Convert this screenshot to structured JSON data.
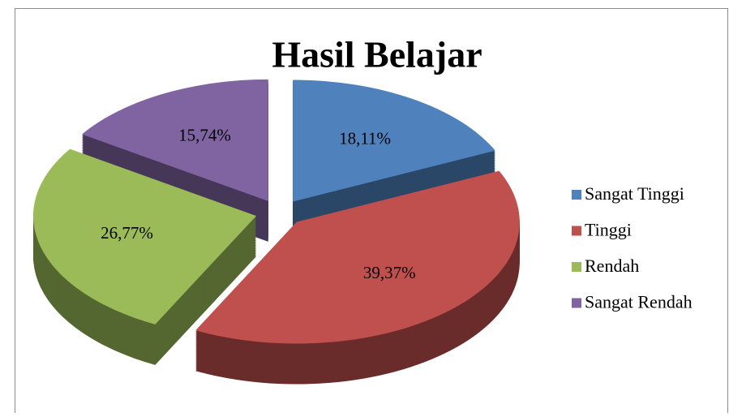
{
  "chart_data": {
    "type": "pie",
    "title": "Hasil Belajar",
    "categories": [
      "Sangat Tinggi",
      "Tinggi",
      "Rendah",
      "Sangat Rendah"
    ],
    "values": [
      18.11,
      39.37,
      26.77,
      15.74
    ],
    "value_labels": [
      "18,11%",
      "39,37%",
      "26,77%",
      "15,74%"
    ],
    "colors": [
      "#4f81bd",
      "#c0504d",
      "#9bbb59",
      "#8064a2"
    ],
    "legend": "right"
  }
}
